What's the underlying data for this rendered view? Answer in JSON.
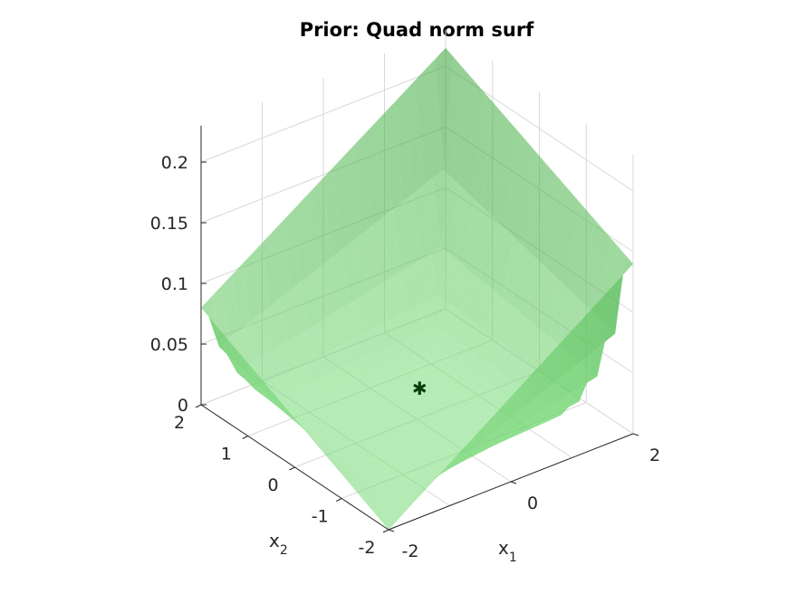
{
  "chart_data": {
    "type": "surface",
    "title": "Prior: Quad norm surf",
    "xlabel": "x",
    "xlabel_sub": "1",
    "ylabel": "x",
    "ylabel_sub": "2",
    "zlabel": "",
    "xlim": [
      -2,
      2
    ],
    "ylim": [
      -2,
      2
    ],
    "zlim": [
      0,
      0.23
    ],
    "x_ticks": [
      {
        "value": -2,
        "label": "-2"
      },
      {
        "value": 0,
        "label": "0"
      },
      {
        "value": 2,
        "label": "2"
      }
    ],
    "y_ticks": [
      {
        "value": -2,
        "label": "-2"
      },
      {
        "value": -1,
        "label": "-1"
      },
      {
        "value": 0,
        "label": "0"
      },
      {
        "value": 1,
        "label": "1"
      },
      {
        "value": 2,
        "label": "2"
      }
    ],
    "z_ticks": [
      {
        "value": 0,
        "label": "0"
      },
      {
        "value": 0.05,
        "label": "0.05"
      },
      {
        "value": 0.1,
        "label": "0.1"
      },
      {
        "value": 0.15,
        "label": "0.15"
      },
      {
        "value": 0.2,
        "label": "0.2"
      }
    ],
    "grid": true,
    "surface": {
      "description_function": "quadratic-norm density peaking along the boundary of the domain",
      "x": [
        -2,
        -1.5,
        -1,
        -0.5,
        0,
        0.5,
        1,
        1.5,
        2
      ],
      "y": [
        -2,
        -1.5,
        -1,
        -0.5,
        0,
        0.5,
        1,
        1.5,
        2
      ],
      "z_corner_values": {
        "x=-2,y=2": 0.08,
        "x=2,y=2": 0.215,
        "x=2,y=-2": 0.14,
        "x=-2,y=-2": 0.0
      },
      "z_center": 0.0,
      "color": "#3cbf3c",
      "alpha": 0.55
    },
    "marker": {
      "x": 0.5,
      "y": 0.6,
      "z": 0.0,
      "symbol": "*",
      "color": "#0b3d0b"
    }
  }
}
